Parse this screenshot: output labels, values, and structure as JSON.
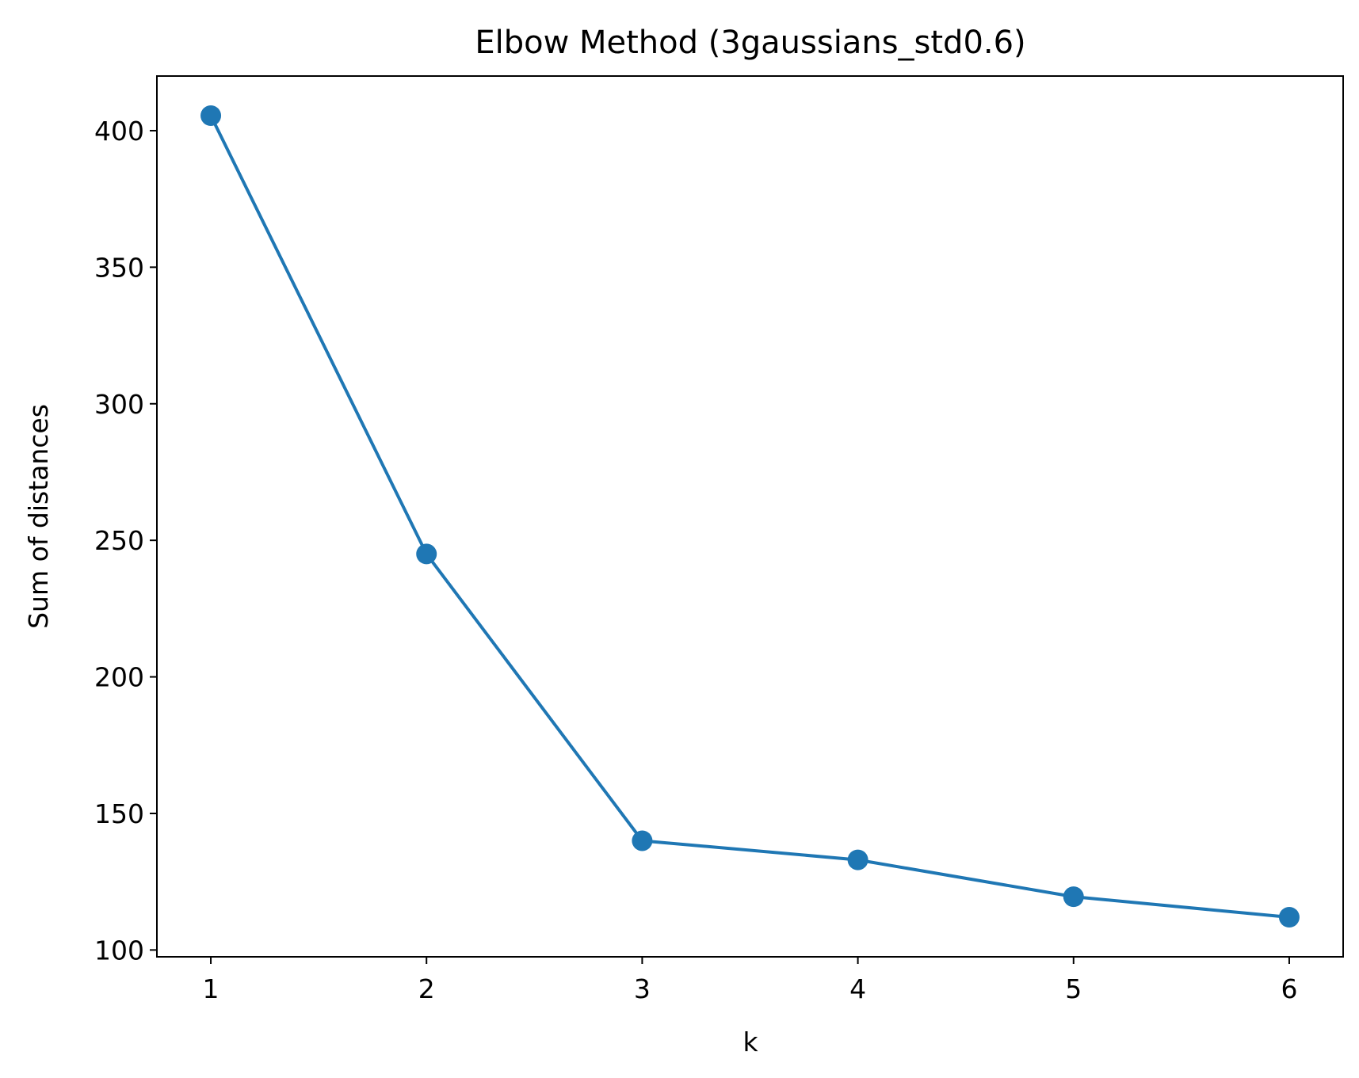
{
  "chart_data": {
    "type": "line",
    "title": "Elbow Method (3gaussians_std0.6)",
    "xlabel": "k",
    "ylabel": "Sum of distances",
    "x": [
      1,
      2,
      3,
      4,
      5,
      6
    ],
    "series": [
      {
        "values": [
          405.5,
          245.0,
          140.0,
          133.0,
          119.5,
          112.0
        ],
        "color": "#1f77b4",
        "marker": "circle"
      }
    ],
    "xlim": [
      0.75,
      6.25
    ],
    "ylim": [
      97.5,
      420
    ],
    "xticks": [
      "1",
      "2",
      "3",
      "4",
      "5",
      "6"
    ],
    "yticks": [
      "100",
      "150",
      "200",
      "250",
      "300",
      "350",
      "400"
    ],
    "grid": false,
    "legend": "none"
  }
}
